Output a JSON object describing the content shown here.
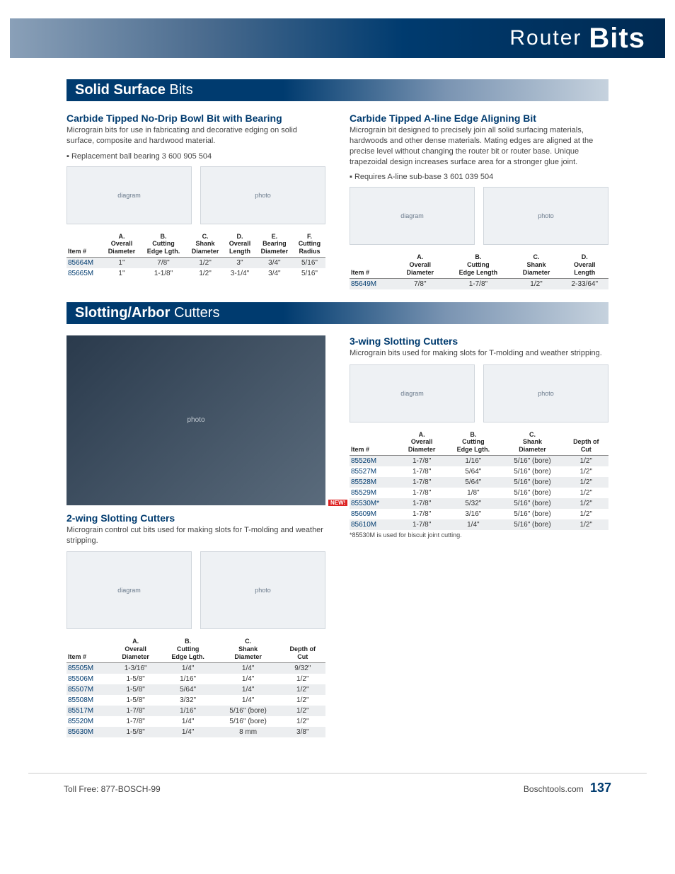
{
  "page": {
    "banner_light": "Router",
    "banner_bold": "Bits",
    "footer_left": "Toll Free:  877-BOSCH-99",
    "footer_right": "Boschtools.com",
    "page_number": "137"
  },
  "section1": {
    "bold": "Solid Surface",
    "light": " Bits"
  },
  "section2": {
    "bold": "Slotting/Arbor",
    "light": " Cutters"
  },
  "nodrip": {
    "title": "Carbide Tipped No-Drip Bowl Bit with Bearing",
    "desc": "Micrograin bits for use in fabricating and decorative edging on solid surface, composite and hardwood material.",
    "bullet": "Replacement ball bearing 3 600 905 504",
    "headers": [
      "Item #",
      "A.\nOverall\nDiameter",
      "B.\nCutting\nEdge Lgth.",
      "C.\nShank\nDiameter",
      "D.\nOverall\nLength",
      "E.\nBearing\nDiameter",
      "F.\nCutting\nRadius"
    ],
    "rows": [
      [
        "85664M",
        "1\"",
        "7/8\"",
        "1/2\"",
        "3\"",
        "3/4\"",
        "5/16\""
      ],
      [
        "85665M",
        "1\"",
        "1-1/8\"",
        "1/2\"",
        "3-1/4\"",
        "3/4\"",
        "5/16\""
      ]
    ]
  },
  "aline": {
    "title": "Carbide Tipped A-line Edge Aligning Bit",
    "desc": "Micrograin bit designed to precisely join all solid surfacing materials, hardwoods and other dense materials. Mating edges are aligned at the precise level without changing the router bit or router base. Unique trapezoidal design increases surface area for a stronger glue joint.",
    "bullet": "Requires A-line sub-base 3 601 039 504",
    "headers": [
      "Item #",
      "A.\nOverall\nDiameter",
      "B.\nCutting\nEdge Length",
      "C.\nShank\nDiameter",
      "D.\nOverall\nLength"
    ],
    "rows": [
      [
        "85649M",
        "7/8\"",
        "1-7/8\"",
        "1/2\"",
        "2-33/64\""
      ]
    ]
  },
  "slotting2": {
    "title": "2-wing Slotting Cutters",
    "desc": "Micrograin control cut bits used for making slots for T-molding and weather stripping.",
    "headers": [
      "Item #",
      "A.\nOverall\nDiameter",
      "B.\nCutting\nEdge Lgth.",
      "C.\nShank\nDiameter",
      "Depth of\nCut"
    ],
    "rows": [
      [
        "85505M",
        "1-3/16\"",
        "1/4\"",
        "1/4\"",
        "9/32\""
      ],
      [
        "85506M",
        "1-5/8\"",
        "1/16\"",
        "1/4\"",
        "1/2\""
      ],
      [
        "85507M",
        "1-5/8\"",
        "5/64\"",
        "1/4\"",
        "1/2\""
      ],
      [
        "85508M",
        "1-5/8\"",
        "3/32\"",
        "1/4\"",
        "1/2\""
      ],
      [
        "85517M",
        "1-7/8\"",
        "1/16\"",
        "5/16\" (bore)",
        "1/2\""
      ],
      [
        "85520M",
        "1-7/8\"",
        "1/4\"",
        "5/16\" (bore)",
        "1/2\""
      ],
      [
        "85630M",
        "1-5/8\"",
        "1/4\"",
        "8 mm",
        "3/8\""
      ]
    ]
  },
  "slotting3": {
    "title": "3-wing Slotting Cutters",
    "desc": "Micrograin bits used for making slots for T-molding and weather stripping.",
    "new_label": "NEW!",
    "headers": [
      "Item #",
      "A.\nOverall\nDiameter",
      "B.\nCutting\nEdge Lgth.",
      "C.\nShank\nDiameter",
      "Depth of\nCut"
    ],
    "rows": [
      [
        "85526M",
        "1-7/8\"",
        "1/16\"",
        "5/16\" (bore)",
        "1/2\""
      ],
      [
        "85527M",
        "1-7/8\"",
        "5/64\"",
        "5/16\" (bore)",
        "1/2\""
      ],
      [
        "85528M",
        "1-7/8\"",
        "5/64\"",
        "5/16\" (bore)",
        "1/2\""
      ],
      [
        "85529M",
        "1-7/8\"",
        "1/8\"",
        "5/16\" (bore)",
        "1/2\""
      ],
      [
        "85530M*",
        "1-7/8\"",
        "5/32\"",
        "5/16\" (bore)",
        "1/2\""
      ],
      [
        "85609M",
        "1-7/8\"",
        "3/16\"",
        "5/16\" (bore)",
        "1/2\""
      ],
      [
        "85610M",
        "1-7/8\"",
        "1/4\"",
        "5/16\" (bore)",
        "1/2\""
      ]
    ],
    "new_row_index": 4,
    "footnote": "*85530M is used for biscuit joint cutting."
  },
  "placeholders": {
    "diagram": "diagram",
    "photo": "photo"
  }
}
